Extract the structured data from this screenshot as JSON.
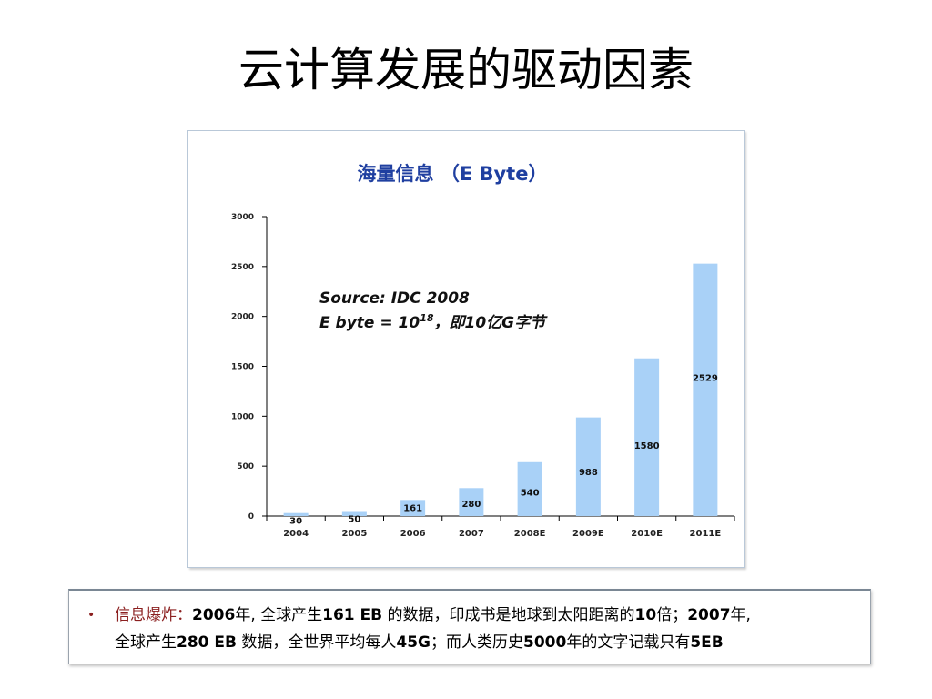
{
  "slide": {
    "title": "云计算发展的驱动因素"
  },
  "chart_data": {
    "type": "bar",
    "title": "海量信息 （E Byte）",
    "categories": [
      "2004",
      "2005",
      "2006",
      "2007",
      "2008E",
      "2009E",
      "2010E",
      "2011E"
    ],
    "values": [
      30,
      50,
      161,
      280,
      540,
      988,
      1580,
      2529
    ],
    "data_labels": [
      "30",
      "50",
      "161",
      "280",
      "540",
      "988",
      "1580",
      "2529"
    ],
    "yticks": [
      0,
      500,
      1000,
      1500,
      2000,
      2500,
      3000
    ],
    "ylim": [
      0,
      3000
    ],
    "bar_color": "#a9d1f7",
    "title_color": "#1f3fa0",
    "annotation": {
      "line1": "Source: IDC 2008",
      "line2_prefix": "E byte = 10",
      "line2_sup": "18",
      "line2_suffix": "，即10亿G字节"
    },
    "legend": "none",
    "grid": false
  },
  "note": {
    "bullet": "•",
    "highlight": "信息爆炸",
    "sep": "：",
    "parts1": [
      {
        "text": "2006",
        "bold": true
      },
      {
        "text": "年, 全球产生",
        "bold": false
      },
      {
        "text": "161 EB",
        "bold": true
      },
      {
        "text": " 的数据，印成书是地球到太阳距离的",
        "bold": false
      },
      {
        "text": "10",
        "bold": true
      },
      {
        "text": "倍；",
        "bold": false
      },
      {
        "text": "2007",
        "bold": true
      },
      {
        "text": "年,",
        "bold": false
      }
    ],
    "parts2": [
      {
        "text": "全球产生",
        "bold": false
      },
      {
        "text": "280 EB",
        "bold": true
      },
      {
        "text": " 数据，全世界平均每人",
        "bold": false
      },
      {
        "text": "45G",
        "bold": true
      },
      {
        "text": "；而人类历史",
        "bold": false
      },
      {
        "text": "5000",
        "bold": true
      },
      {
        "text": "年的文字记载只有",
        "bold": false
      },
      {
        "text": "5EB",
        "bold": true
      }
    ]
  }
}
